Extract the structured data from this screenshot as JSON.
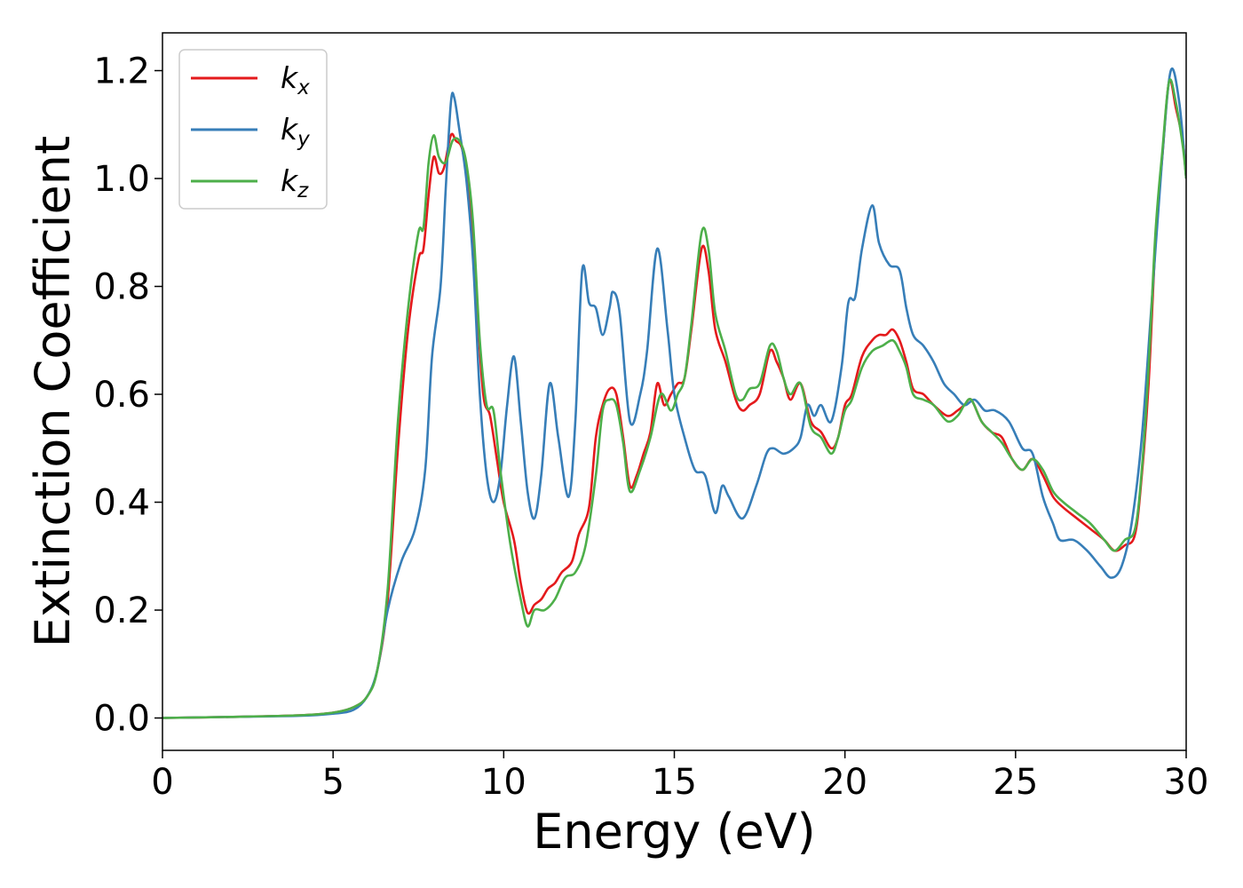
{
  "chart_data": {
    "type": "line",
    "xlabel": "Energy (eV)",
    "ylabel": "Extinction Coefficient",
    "xlim": [
      0,
      30
    ],
    "ylim": [
      -0.06,
      1.27
    ],
    "xticks": [
      0,
      5,
      10,
      15,
      20,
      25,
      30
    ],
    "xtick_labels": [
      "0",
      "5",
      "10",
      "15",
      "20",
      "25",
      "30"
    ],
    "yticks": [
      0.0,
      0.2,
      0.4,
      0.6,
      0.8,
      1.0,
      1.2
    ],
    "ytick_labels": [
      "0.0",
      "0.2",
      "0.4",
      "0.6",
      "0.8",
      "1.0",
      "1.2"
    ],
    "grid": false,
    "legend_position": "top-left",
    "series": [
      {
        "name": "k_x",
        "label_main": "k",
        "label_sub": "x",
        "color": "#e41a1c",
        "points": [
          [
            0,
            0
          ],
          [
            2,
            0.002
          ],
          [
            4,
            0.005
          ],
          [
            5,
            0.01
          ],
          [
            5.6,
            0.02
          ],
          [
            6,
            0.04
          ],
          [
            6.3,
            0.09
          ],
          [
            6.6,
            0.22
          ],
          [
            6.9,
            0.5
          ],
          [
            7.2,
            0.72
          ],
          [
            7.5,
            0.85
          ],
          [
            7.65,
            0.87
          ],
          [
            7.8,
            0.97
          ],
          [
            7.95,
            1.04
          ],
          [
            8.1,
            1.01
          ],
          [
            8.25,
            1.02
          ],
          [
            8.45,
            1.08
          ],
          [
            8.6,
            1.07
          ],
          [
            8.8,
            1.05
          ],
          [
            9.0,
            0.95
          ],
          [
            9.2,
            0.78
          ],
          [
            9.4,
            0.6
          ],
          [
            9.6,
            0.56
          ],
          [
            9.8,
            0.48
          ],
          [
            10.0,
            0.4
          ],
          [
            10.3,
            0.33
          ],
          [
            10.5,
            0.25
          ],
          [
            10.7,
            0.195
          ],
          [
            10.9,
            0.21
          ],
          [
            11.1,
            0.22
          ],
          [
            11.3,
            0.24
          ],
          [
            11.5,
            0.25
          ],
          [
            11.7,
            0.27
          ],
          [
            12.0,
            0.29
          ],
          [
            12.2,
            0.34
          ],
          [
            12.5,
            0.39
          ],
          [
            12.7,
            0.52
          ],
          [
            12.9,
            0.58
          ],
          [
            13.1,
            0.61
          ],
          [
            13.3,
            0.6
          ],
          [
            13.5,
            0.52
          ],
          [
            13.7,
            0.43
          ],
          [
            13.9,
            0.45
          ],
          [
            14.1,
            0.49
          ],
          [
            14.3,
            0.53
          ],
          [
            14.5,
            0.62
          ],
          [
            14.7,
            0.58
          ],
          [
            14.9,
            0.6
          ],
          [
            15.1,
            0.62
          ],
          [
            15.3,
            0.63
          ],
          [
            15.5,
            0.72
          ],
          [
            15.8,
            0.87
          ],
          [
            16.0,
            0.83
          ],
          [
            16.2,
            0.72
          ],
          [
            16.5,
            0.66
          ],
          [
            16.8,
            0.59
          ],
          [
            17.0,
            0.57
          ],
          [
            17.2,
            0.58
          ],
          [
            17.5,
            0.6
          ],
          [
            17.8,
            0.68
          ],
          [
            18.0,
            0.66
          ],
          [
            18.2,
            0.63
          ],
          [
            18.4,
            0.59
          ],
          [
            18.7,
            0.62
          ],
          [
            19.0,
            0.55
          ],
          [
            19.3,
            0.53
          ],
          [
            19.6,
            0.5
          ],
          [
            19.8,
            0.52
          ],
          [
            20.0,
            0.58
          ],
          [
            20.2,
            0.6
          ],
          [
            20.5,
            0.67
          ],
          [
            20.8,
            0.7
          ],
          [
            21.0,
            0.71
          ],
          [
            21.2,
            0.71
          ],
          [
            21.4,
            0.72
          ],
          [
            21.6,
            0.7
          ],
          [
            21.8,
            0.66
          ],
          [
            22.0,
            0.61
          ],
          [
            22.3,
            0.6
          ],
          [
            22.6,
            0.58
          ],
          [
            23.0,
            0.56
          ],
          [
            23.3,
            0.57
          ],
          [
            23.5,
            0.58
          ],
          [
            23.7,
            0.59
          ],
          [
            24.0,
            0.55
          ],
          [
            24.3,
            0.53
          ],
          [
            24.6,
            0.52
          ],
          [
            24.9,
            0.48
          ],
          [
            25.2,
            0.46
          ],
          [
            25.5,
            0.48
          ],
          [
            25.8,
            0.45
          ],
          [
            26.1,
            0.41
          ],
          [
            26.4,
            0.39
          ],
          [
            26.8,
            0.37
          ],
          [
            27.2,
            0.35
          ],
          [
            27.6,
            0.33
          ],
          [
            27.9,
            0.31
          ],
          [
            28.2,
            0.32
          ],
          [
            28.5,
            0.34
          ],
          [
            28.7,
            0.45
          ],
          [
            28.9,
            0.62
          ],
          [
            29.1,
            0.88
          ],
          [
            29.3,
            1.04
          ],
          [
            29.5,
            1.18
          ],
          [
            29.7,
            1.13
          ],
          [
            29.9,
            1.07
          ],
          [
            30.0,
            1.0
          ]
        ]
      },
      {
        "name": "k_y",
        "label_main": "k",
        "label_sub": "y",
        "color": "#377eb8",
        "points": [
          [
            0,
            0
          ],
          [
            2,
            0.002
          ],
          [
            4,
            0.004
          ],
          [
            5,
            0.008
          ],
          [
            5.6,
            0.015
          ],
          [
            6,
            0.04
          ],
          [
            6.3,
            0.09
          ],
          [
            6.6,
            0.2
          ],
          [
            7.0,
            0.29
          ],
          [
            7.4,
            0.35
          ],
          [
            7.7,
            0.46
          ],
          [
            7.9,
            0.67
          ],
          [
            8.15,
            0.8
          ],
          [
            8.3,
            0.98
          ],
          [
            8.45,
            1.14
          ],
          [
            8.55,
            1.15
          ],
          [
            8.7,
            1.09
          ],
          [
            8.9,
            1.0
          ],
          [
            9.1,
            0.85
          ],
          [
            9.3,
            0.6
          ],
          [
            9.5,
            0.45
          ],
          [
            9.7,
            0.4
          ],
          [
            9.9,
            0.45
          ],
          [
            10.1,
            0.58
          ],
          [
            10.3,
            0.67
          ],
          [
            10.5,
            0.55
          ],
          [
            10.7,
            0.42
          ],
          [
            10.9,
            0.37
          ],
          [
            11.1,
            0.45
          ],
          [
            11.35,
            0.62
          ],
          [
            11.6,
            0.52
          ],
          [
            11.9,
            0.41
          ],
          [
            12.1,
            0.55
          ],
          [
            12.3,
            0.83
          ],
          [
            12.5,
            0.77
          ],
          [
            12.7,
            0.76
          ],
          [
            12.9,
            0.71
          ],
          [
            13.1,
            0.76
          ],
          [
            13.2,
            0.79
          ],
          [
            13.4,
            0.75
          ],
          [
            13.7,
            0.55
          ],
          [
            14.0,
            0.6
          ],
          [
            14.2,
            0.68
          ],
          [
            14.5,
            0.87
          ],
          [
            14.8,
            0.72
          ],
          [
            15.0,
            0.6
          ],
          [
            15.3,
            0.52
          ],
          [
            15.6,
            0.46
          ],
          [
            15.9,
            0.45
          ],
          [
            16.2,
            0.38
          ],
          [
            16.4,
            0.43
          ],
          [
            16.6,
            0.41
          ],
          [
            17.0,
            0.37
          ],
          [
            17.4,
            0.43
          ],
          [
            17.7,
            0.49
          ],
          [
            17.9,
            0.5
          ],
          [
            18.2,
            0.49
          ],
          [
            18.5,
            0.5
          ],
          [
            18.7,
            0.52
          ],
          [
            18.9,
            0.58
          ],
          [
            19.1,
            0.56
          ],
          [
            19.3,
            0.58
          ],
          [
            19.6,
            0.55
          ],
          [
            19.9,
            0.65
          ],
          [
            20.1,
            0.77
          ],
          [
            20.3,
            0.78
          ],
          [
            20.5,
            0.87
          ],
          [
            20.8,
            0.95
          ],
          [
            21.0,
            0.88
          ],
          [
            21.3,
            0.84
          ],
          [
            21.6,
            0.83
          ],
          [
            21.8,
            0.76
          ],
          [
            22.0,
            0.71
          ],
          [
            22.3,
            0.69
          ],
          [
            22.6,
            0.66
          ],
          [
            22.9,
            0.62
          ],
          [
            23.2,
            0.6
          ],
          [
            23.5,
            0.58
          ],
          [
            23.8,
            0.59
          ],
          [
            24.1,
            0.57
          ],
          [
            24.4,
            0.57
          ],
          [
            24.8,
            0.55
          ],
          [
            25.2,
            0.5
          ],
          [
            25.5,
            0.49
          ],
          [
            25.8,
            0.41
          ],
          [
            26.1,
            0.36
          ],
          [
            26.3,
            0.33
          ],
          [
            26.7,
            0.33
          ],
          [
            27.1,
            0.31
          ],
          [
            27.5,
            0.28
          ],
          [
            27.8,
            0.26
          ],
          [
            28.1,
            0.28
          ],
          [
            28.4,
            0.36
          ],
          [
            28.7,
            0.52
          ],
          [
            29.0,
            0.78
          ],
          [
            29.3,
            1.04
          ],
          [
            29.55,
            1.2
          ],
          [
            29.8,
            1.14
          ],
          [
            30.0,
            1.0
          ]
        ]
      },
      {
        "name": "k_z",
        "label_main": "k",
        "label_sub": "z",
        "color": "#4daf4a",
        "points": [
          [
            0,
            0
          ],
          [
            2,
            0.002
          ],
          [
            4,
            0.005
          ],
          [
            5,
            0.01
          ],
          [
            5.6,
            0.02
          ],
          [
            6,
            0.04
          ],
          [
            6.3,
            0.09
          ],
          [
            6.6,
            0.24
          ],
          [
            6.9,
            0.55
          ],
          [
            7.2,
            0.76
          ],
          [
            7.5,
            0.9
          ],
          [
            7.65,
            0.91
          ],
          [
            7.8,
            1.03
          ],
          [
            7.95,
            1.08
          ],
          [
            8.1,
            1.04
          ],
          [
            8.3,
            1.03
          ],
          [
            8.5,
            1.07
          ],
          [
            8.7,
            1.07
          ],
          [
            8.9,
            1.03
          ],
          [
            9.1,
            0.92
          ],
          [
            9.3,
            0.7
          ],
          [
            9.5,
            0.58
          ],
          [
            9.7,
            0.57
          ],
          [
            9.9,
            0.46
          ],
          [
            10.2,
            0.32
          ],
          [
            10.5,
            0.22
          ],
          [
            10.7,
            0.17
          ],
          [
            10.9,
            0.2
          ],
          [
            11.2,
            0.2
          ],
          [
            11.5,
            0.22
          ],
          [
            11.8,
            0.26
          ],
          [
            12.1,
            0.27
          ],
          [
            12.4,
            0.32
          ],
          [
            12.7,
            0.45
          ],
          [
            12.9,
            0.57
          ],
          [
            13.1,
            0.59
          ],
          [
            13.3,
            0.58
          ],
          [
            13.5,
            0.51
          ],
          [
            13.7,
            0.42
          ],
          [
            14.0,
            0.46
          ],
          [
            14.3,
            0.52
          ],
          [
            14.6,
            0.6
          ],
          [
            14.9,
            0.57
          ],
          [
            15.1,
            0.6
          ],
          [
            15.3,
            0.63
          ],
          [
            15.5,
            0.73
          ],
          [
            15.8,
            0.9
          ],
          [
            16.0,
            0.87
          ],
          [
            16.2,
            0.75
          ],
          [
            16.5,
            0.68
          ],
          [
            16.8,
            0.6
          ],
          [
            17.0,
            0.59
          ],
          [
            17.2,
            0.61
          ],
          [
            17.5,
            0.62
          ],
          [
            17.8,
            0.69
          ],
          [
            18.0,
            0.68
          ],
          [
            18.2,
            0.63
          ],
          [
            18.4,
            0.6
          ],
          [
            18.7,
            0.62
          ],
          [
            19.0,
            0.54
          ],
          [
            19.3,
            0.52
          ],
          [
            19.6,
            0.49
          ],
          [
            19.8,
            0.52
          ],
          [
            20.0,
            0.57
          ],
          [
            20.2,
            0.59
          ],
          [
            20.5,
            0.65
          ],
          [
            20.8,
            0.68
          ],
          [
            21.1,
            0.69
          ],
          [
            21.4,
            0.7
          ],
          [
            21.6,
            0.68
          ],
          [
            21.8,
            0.65
          ],
          [
            22.0,
            0.6
          ],
          [
            22.3,
            0.59
          ],
          [
            22.6,
            0.58
          ],
          [
            23.0,
            0.55
          ],
          [
            23.3,
            0.56
          ],
          [
            23.5,
            0.58
          ],
          [
            23.7,
            0.59
          ],
          [
            24.0,
            0.55
          ],
          [
            24.3,
            0.53
          ],
          [
            24.6,
            0.51
          ],
          [
            24.9,
            0.48
          ],
          [
            25.2,
            0.46
          ],
          [
            25.5,
            0.48
          ],
          [
            25.8,
            0.46
          ],
          [
            26.1,
            0.42
          ],
          [
            26.4,
            0.4
          ],
          [
            26.8,
            0.38
          ],
          [
            27.2,
            0.36
          ],
          [
            27.6,
            0.33
          ],
          [
            27.9,
            0.31
          ],
          [
            28.2,
            0.33
          ],
          [
            28.5,
            0.35
          ],
          [
            28.7,
            0.46
          ],
          [
            28.9,
            0.65
          ],
          [
            29.1,
            0.9
          ],
          [
            29.3,
            1.05
          ],
          [
            29.5,
            1.18
          ],
          [
            29.7,
            1.14
          ],
          [
            29.9,
            1.06
          ],
          [
            30.0,
            1.0
          ]
        ]
      }
    ]
  }
}
